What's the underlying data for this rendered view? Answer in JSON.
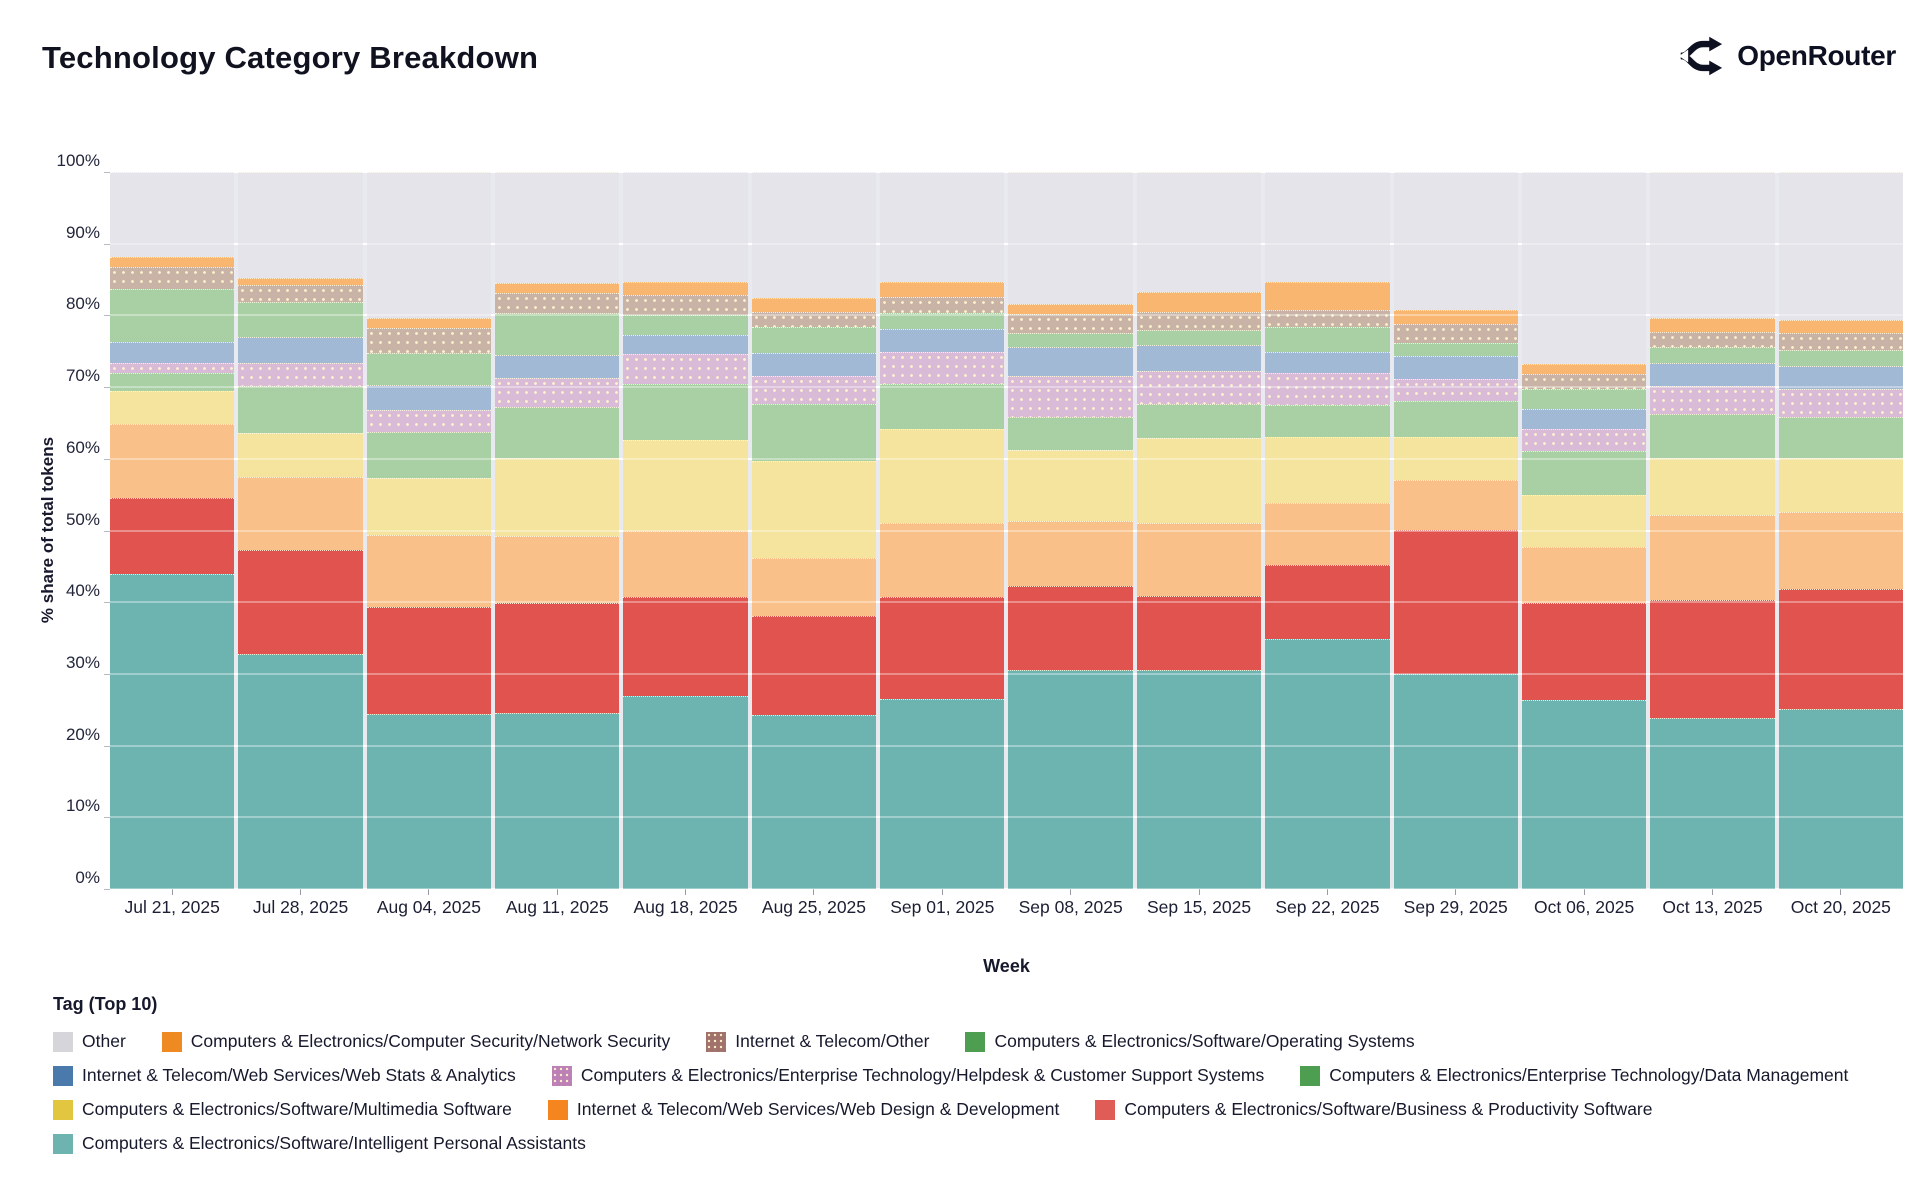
{
  "header": {
    "title": "Technology Category Breakdown",
    "logo_text": "OpenRouter"
  },
  "chart_data": {
    "type": "bar",
    "stacked": true,
    "title": "Technology Category Breakdown",
    "xlabel": "Week",
    "ylabel": "% share of total tokens",
    "legend_title": "Tag (Top 10)",
    "ylim": [
      0,
      100
    ],
    "yticks": [
      0,
      10,
      20,
      30,
      40,
      50,
      60,
      70,
      80,
      90,
      100
    ],
    "ytick_labels": [
      "0%",
      "10%",
      "20%",
      "30%",
      "40%",
      "50%",
      "60%",
      "70%",
      "80%",
      "90%",
      "100%"
    ],
    "grid": true,
    "legend_position": "bottom",
    "plot_bg": "#e9e9f0",
    "categories": [
      "Jul 21, 2025",
      "Jul 28, 2025",
      "Aug 04, 2025",
      "Aug 11, 2025",
      "Aug 18, 2025",
      "Aug 25, 2025",
      "Sep 01, 2025",
      "Sep 08, 2025",
      "Sep 15, 2025",
      "Sep 22, 2025",
      "Sep 29, 2025",
      "Oct 06, 2025",
      "Oct 13, 2025",
      "Oct 20, 2025"
    ],
    "stack_order_bottom_to_top": [
      "assistants",
      "productivity",
      "webdesign",
      "multimedia",
      "datamgmt",
      "helpdesk",
      "webstats",
      "os",
      "telecom_other",
      "netsec",
      "other"
    ],
    "legend_order": [
      "other",
      "netsec",
      "telecom_other",
      "os",
      "webstats",
      "helpdesk",
      "datamgmt",
      "multimedia",
      "webdesign",
      "productivity",
      "assistants"
    ],
    "series": {
      "other": {
        "name": "Other",
        "legend_color": "#d5d5da",
        "bar_color": "#e4e4ea",
        "pattern": false,
        "values": [
          11.8,
          14.8,
          20.4,
          15.4,
          15.3,
          17.6,
          15.3,
          18.4,
          16.7,
          15.3,
          19.2,
          26.7,
          20.4,
          20.6
        ]
      },
      "netsec": {
        "name": "Computers & Electronics/Computer Security/Network Security",
        "legend_color": "#ee8a21",
        "bar_color": "#f8b671",
        "pattern": false,
        "values": [
          1.5,
          1.0,
          1.4,
          1.5,
          1.9,
          1.9,
          2.1,
          1.4,
          2.8,
          3.9,
          2.0,
          1.5,
          1.9,
          1.9
        ]
      },
      "telecom_other": {
        "name": "Internet & Telecom/Other",
        "legend_color": "#a1716b",
        "bar_color": "#c9b3a7",
        "pattern": true,
        "values": [
          3.0,
          2.3,
          3.5,
          2.8,
          2.8,
          2.1,
          2.3,
          2.7,
          2.5,
          2.4,
          2.6,
          2.1,
          2.1,
          2.3
        ]
      },
      "os": {
        "name": "Computers & Electronics/Software/Operating Systems",
        "legend_color": "#4e9e51",
        "bar_color": "#a9cfa4",
        "pattern": false,
        "values": [
          7.4,
          4.9,
          4.4,
          5.8,
          2.7,
          3.6,
          2.2,
          1.9,
          2.1,
          3.5,
          1.8,
          2.8,
          2.3,
          2.3
        ]
      },
      "webstats": {
        "name": "Internet & Telecom/Web Services/Web Stats & Analytics",
        "legend_color": "#4a79ab",
        "bar_color": "#a2b9d5",
        "pattern": false,
        "values": [
          2.9,
          3.7,
          3.5,
          3.2,
          2.7,
          3.2,
          3.2,
          4.0,
          3.7,
          2.9,
          3.3,
          2.8,
          3.2,
          3.2
        ]
      },
      "helpdesk": {
        "name": "Computers & Electronics/Enterprise Technology/Helpdesk & Customer Support Systems",
        "legend_color": "#bc80b5",
        "bar_color": "#d9bbd8",
        "pattern": true,
        "values": [
          1.4,
          3.2,
          3.1,
          4.1,
          4.2,
          4.0,
          4.5,
          5.7,
          4.5,
          4.5,
          3.1,
          3.0,
          3.8,
          3.8
        ]
      },
      "datamgmt": {
        "name": "Computers & Electronics/Enterprise Technology/Data Management",
        "legend_color": "#4e9e51",
        "bar_color": "#a9cfa4",
        "pattern": false,
        "values": [
          2.6,
          6.5,
          6.4,
          7.1,
          7.8,
          7.9,
          6.3,
          4.7,
          4.8,
          4.4,
          5.0,
          6.1,
          6.2,
          5.8
        ]
      },
      "multimedia": {
        "name": "Computers & Electronics/Software/Multimedia Software",
        "legend_color": "#e2c63f",
        "bar_color": "#f4e49d",
        "pattern": false,
        "values": [
          4.6,
          6.1,
          7.9,
          10.8,
          12.7,
          13.5,
          13.0,
          9.8,
          11.9,
          9.2,
          6.0,
          7.3,
          7.9,
          7.5
        ]
      },
      "webdesign": {
        "name": "Internet & Telecom/Web Services/Web Design & Development",
        "legend_color": "#f5861f",
        "bar_color": "#f9c189",
        "pattern": false,
        "values": [
          10.3,
          10.2,
          10.1,
          9.4,
          9.2,
          8.1,
          10.4,
          9.1,
          10.2,
          8.7,
          6.9,
          7.8,
          11.9,
          10.7
        ]
      },
      "productivity": {
        "name": "Computers & Electronics/Software/Business & Productivity Software",
        "legend_color": "#e05c57",
        "bar_color": "#e0534f",
        "pattern": false,
        "values": [
          10.5,
          14.5,
          14.9,
          15.4,
          13.8,
          13.8,
          14.2,
          11.8,
          10.3,
          10.4,
          20.1,
          13.6,
          16.4,
          16.8
        ]
      },
      "assistants": {
        "name": "Computers & Electronics/Software/Intelligent Personal Assistants",
        "legend_color": "#6db4b1",
        "bar_color": "#6db4b1",
        "pattern": false,
        "values": [
          44.0,
          32.8,
          24.4,
          24.5,
          26.9,
          24.3,
          26.5,
          30.5,
          30.5,
          34.8,
          30.0,
          26.3,
          23.9,
          25.1
        ]
      }
    }
  }
}
